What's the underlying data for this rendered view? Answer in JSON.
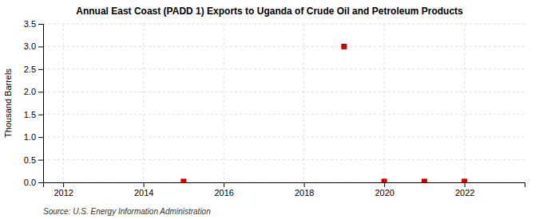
{
  "chart_data": {
    "type": "scatter",
    "title": "Annual East Coast (PADD 1) Exports to Uganda of Crude Oil and Petroleum Products",
    "ylabel": "Thousand Barrels",
    "annotations": [
      "Source: U.S. Energy Information Administration"
    ],
    "x": [
      2015,
      2019,
      2020,
      2021,
      2022
    ],
    "values": [
      0.02,
      3.0,
      0.02,
      0.02,
      0.02
    ],
    "color": "#cc0000",
    "marker": "square",
    "xlim": [
      2011.5,
      2023.5
    ],
    "xticks": [
      2012,
      2014,
      2016,
      2018,
      2020,
      2022
    ],
    "ylim": [
      0,
      3.5
    ],
    "yticks": [
      {
        "value": 0,
        "label": "0.0"
      },
      0.5,
      {
        "value": 1,
        "label": "1.0"
      },
      1.5,
      {
        "value": 2,
        "label": "2.0"
      },
      2.5,
      {
        "value": 3,
        "label": "3.0"
      },
      3.5
    ],
    "grid": true
  }
}
